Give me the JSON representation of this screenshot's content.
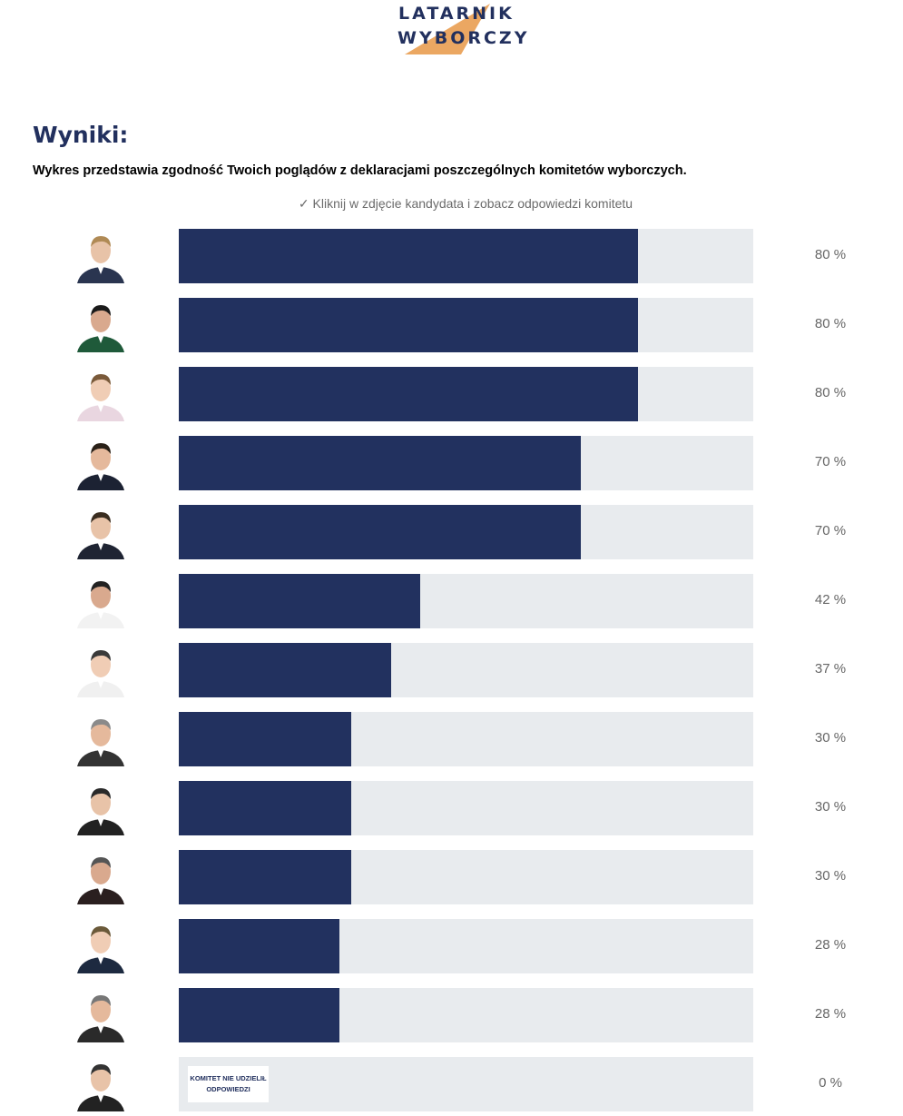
{
  "logo": {
    "line1": "LATARNIK",
    "line2": "WYBORCZY",
    "accent_color": "#eba762",
    "text_color": "#22305e"
  },
  "header": {
    "title": "Wyniki:",
    "subtitle": "Wykres przedstawia zgodność Twoich poglądów z deklaracjami poszczególnych komitetów wyborczych.",
    "hint": "✓ Kliknij w zdjęcie kandydata i zobacz odpowiedzi komitetu"
  },
  "colors": {
    "bar_fill": "#22315f",
    "bar_track": "#e8ebee"
  },
  "results": [
    {
      "percent": 80,
      "label": "80 %"
    },
    {
      "percent": 80,
      "label": "80 %"
    },
    {
      "percent": 80,
      "label": "80 %"
    },
    {
      "percent": 70,
      "label": "70 %"
    },
    {
      "percent": 70,
      "label": "70 %"
    },
    {
      "percent": 42,
      "label": "42 %"
    },
    {
      "percent": 37,
      "label": "37 %"
    },
    {
      "percent": 30,
      "label": "30 %"
    },
    {
      "percent": 30,
      "label": "30 %"
    },
    {
      "percent": 30,
      "label": "30 %"
    },
    {
      "percent": 28,
      "label": "28 %"
    },
    {
      "percent": 28,
      "label": "28 %"
    },
    {
      "percent": 0,
      "label": "0 %",
      "note": "KOMITET NIE UDZIELIŁ ODPOWIEDZI"
    }
  ]
}
